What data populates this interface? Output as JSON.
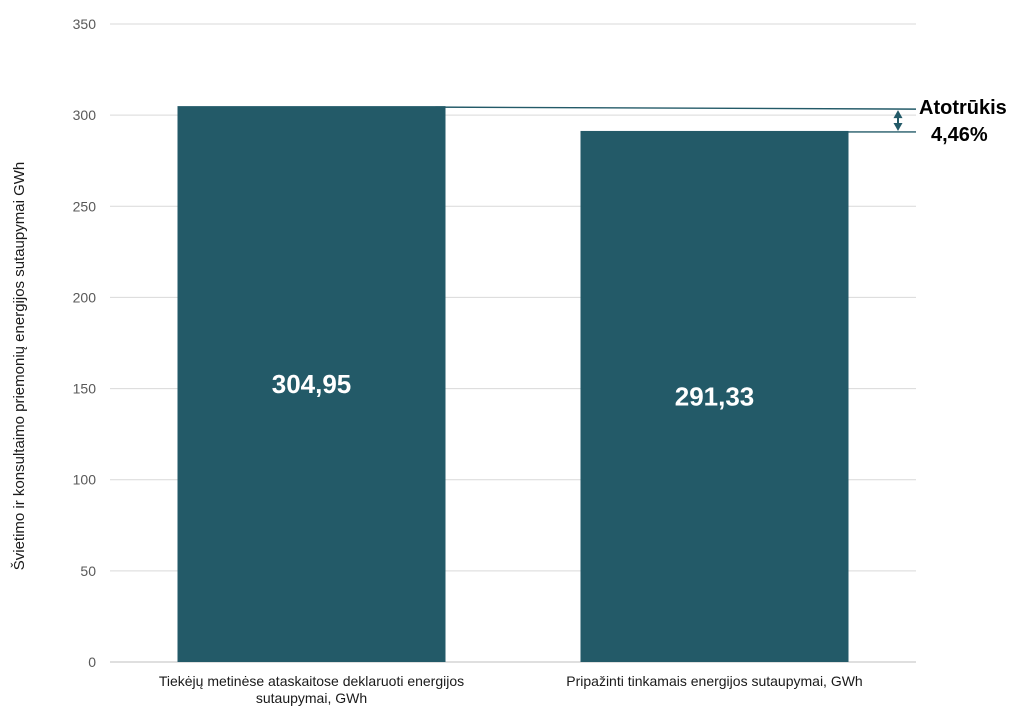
{
  "chart_data": {
    "type": "bar",
    "ylabel": "Švietimo ir konsultaimo priemonių energijos sutaupymai GWh",
    "xlabel": "",
    "ylim": [
      0,
      350
    ],
    "yticks": [
      0,
      50,
      100,
      150,
      200,
      250,
      300,
      350
    ],
    "grid": true,
    "categories": [
      [
        "Tiekėjų metinėse ataskaitose deklaruoti energijos",
        "sutaupymai, GWh"
      ],
      [
        "Pripažinti tinkamais energijos sutaupymai, GWh"
      ]
    ],
    "values": [
      304.95,
      291.33
    ],
    "data_labels": [
      "304,95",
      "291,33"
    ],
    "bar_color": "#235a68",
    "annotation": {
      "title": "Atotrūkis",
      "value": "4,46%",
      "color": "#235a68"
    }
  }
}
